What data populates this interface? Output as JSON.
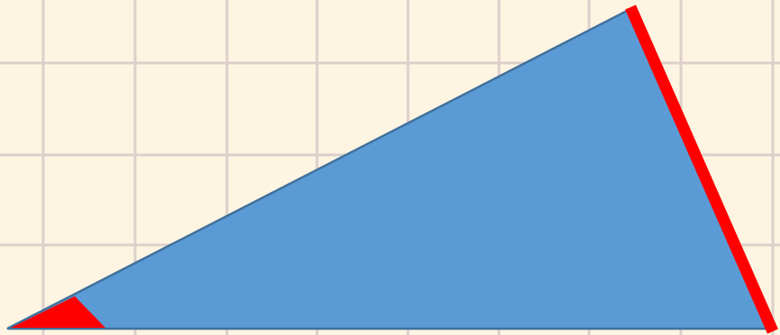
{
  "diagram": {
    "kind": "right triangle on grid paper",
    "colors": {
      "background": "#fdf5e2",
      "grid_line": "#ddd0cb",
      "triangle_fill": "#5b9bd5",
      "triangle_edge": "#41719c",
      "highlight": "#ff0000"
    },
    "highlights": [
      {
        "name": "acute-angle-at-bottom-left-vertex",
        "shape": "filled wedge"
      },
      {
        "name": "side-opposite-that-angle",
        "shape": "thick line"
      }
    ],
    "text_labels": []
  }
}
